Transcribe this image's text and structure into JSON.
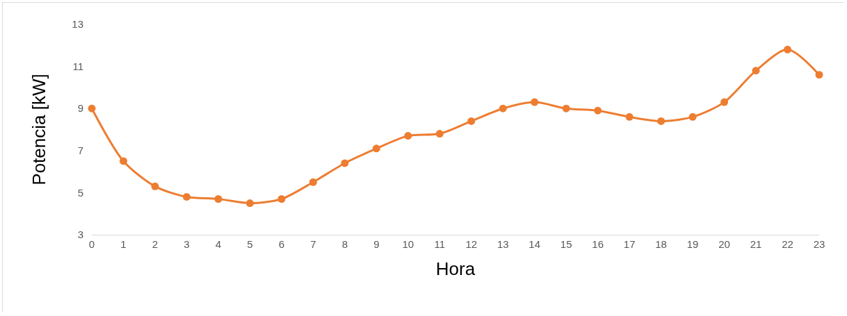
{
  "chart_data": {
    "type": "line",
    "xlabel": "Hora",
    "ylabel": "Potencia [kW]",
    "x": [
      0,
      1,
      2,
      3,
      4,
      5,
      6,
      7,
      8,
      9,
      10,
      11,
      12,
      13,
      14,
      15,
      16,
      17,
      18,
      19,
      20,
      21,
      22,
      23
    ],
    "series": [
      {
        "color": "#ed7d31",
        "values": [
          9.0,
          6.5,
          5.3,
          4.8,
          4.7,
          4.5,
          4.7,
          5.5,
          6.4,
          7.1,
          7.7,
          7.8,
          8.4,
          9.0,
          9.3,
          9.0,
          8.9,
          8.6,
          8.4,
          8.6,
          9.3,
          10.8,
          11.8,
          10.6
        ]
      }
    ],
    "xlim": [
      0,
      23
    ],
    "xticks": [
      0,
      1,
      2,
      3,
      4,
      5,
      6,
      7,
      8,
      9,
      10,
      11,
      12,
      13,
      14,
      15,
      16,
      17,
      18,
      19,
      20,
      21,
      22,
      23
    ],
    "ylim": [
      3,
      13
    ],
    "yticks": [
      3,
      5,
      7,
      9,
      11,
      13
    ],
    "grid": false,
    "marker": "circle",
    "line_style": "solid"
  }
}
